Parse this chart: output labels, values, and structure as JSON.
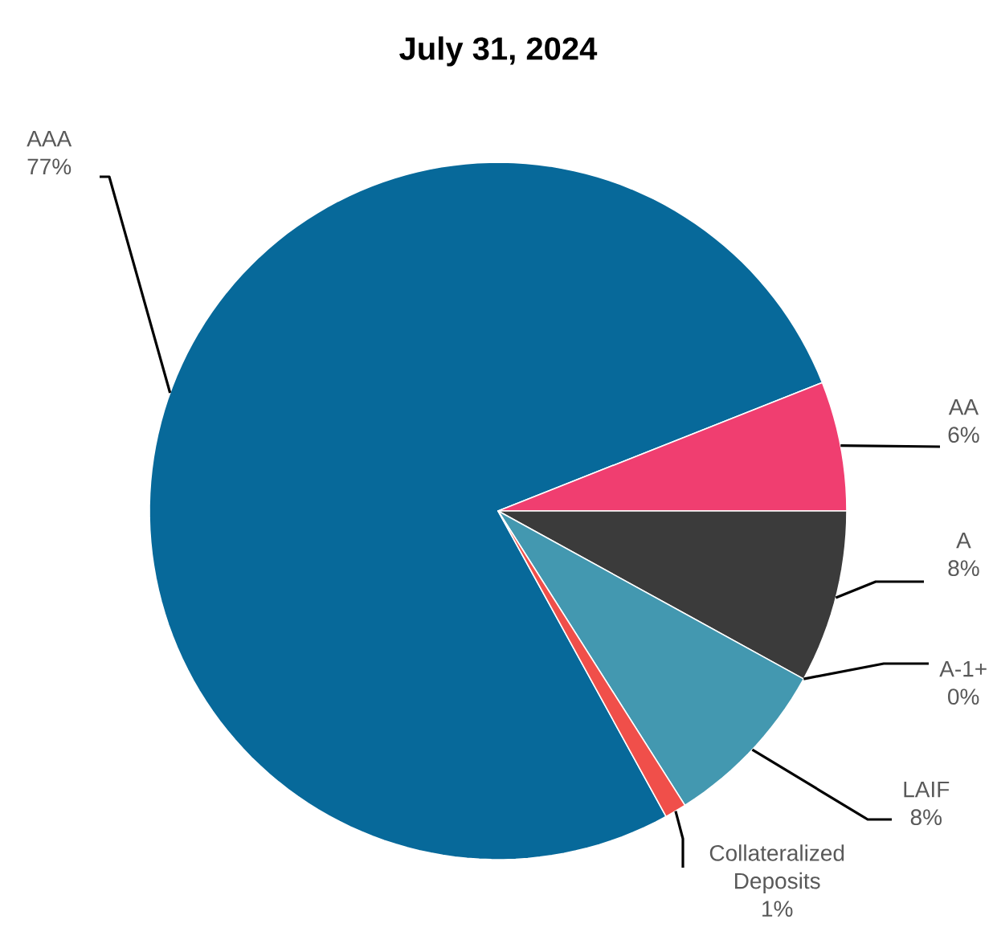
{
  "chart_data": {
    "type": "pie",
    "title": "July 31, 2024",
    "categories": [
      "AAA",
      "AA",
      "A",
      "A-1+",
      "LAIF",
      "Collateralized Deposits"
    ],
    "values": [
      77,
      6,
      8,
      0,
      8,
      1
    ],
    "value_labels": [
      "77%",
      "6%",
      "8%",
      "0%",
      "8%",
      "1%"
    ],
    "colors": [
      "#07699a",
      "#f03e70",
      "#3b3b3b",
      "#7f7f7f",
      "#4398b0",
      "#f04f4a"
    ]
  }
}
